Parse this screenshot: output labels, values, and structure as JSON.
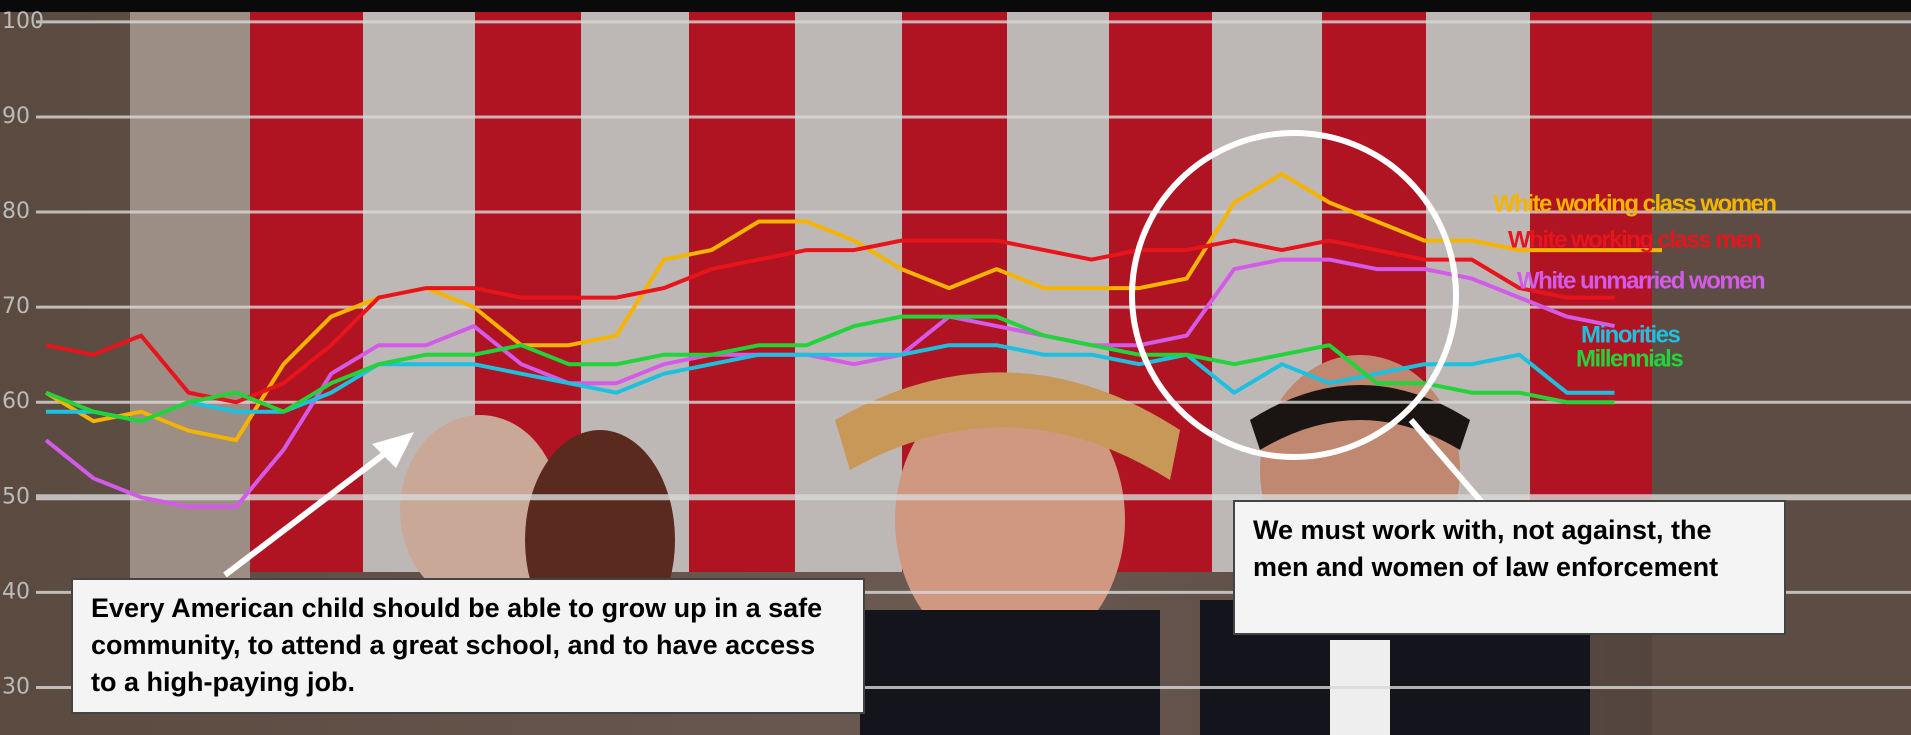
{
  "chart_data": {
    "type": "line",
    "ylim": [
      25,
      102.3
    ],
    "yticks": [
      30,
      40,
      50,
      60,
      70,
      80,
      90,
      100
    ],
    "grid": true,
    "series": [
      {
        "name": "White working class women",
        "color": "#f5b400",
        "values": [
          61,
          58,
          59,
          57,
          56,
          64,
          69,
          71,
          72,
          70,
          66,
          66,
          67,
          75,
          76,
          79,
          79,
          77,
          74,
          72,
          74,
          72,
          72,
          72,
          73,
          81,
          84,
          81,
          79,
          77,
          77,
          76,
          76,
          76,
          76
        ]
      },
      {
        "name": "White working class men",
        "color": "#e8141c",
        "values": [
          66,
          65,
          67,
          61,
          60,
          62,
          66,
          71,
          72,
          72,
          71,
          71,
          71,
          72,
          74,
          75,
          76,
          76,
          77,
          77,
          77,
          76,
          75,
          76,
          76,
          77,
          76,
          77,
          76,
          75,
          75,
          72,
          71,
          71,
          null
        ]
      },
      {
        "name": "White unmarried women",
        "color": "#d45ae8",
        "values": [
          56,
          52,
          50,
          49,
          49,
          55,
          63,
          66,
          66,
          68,
          64,
          62,
          62,
          64,
          65,
          65,
          65,
          64,
          65,
          69,
          68,
          67,
          66,
          66,
          67,
          74,
          75,
          75,
          74,
          74,
          73,
          71,
          69,
          68,
          null
        ]
      },
      {
        "name": "Minorities",
        "color": "#1ec0e0",
        "values": [
          59,
          59,
          58,
          60,
          59,
          59,
          61,
          64,
          64,
          64,
          63,
          62,
          61,
          63,
          64,
          65,
          65,
          65,
          65,
          66,
          66,
          65,
          65,
          64,
          65,
          61,
          64,
          62,
          63,
          64,
          64,
          65,
          61,
          61,
          null
        ]
      },
      {
        "name": "Millennials",
        "color": "#22d43a",
        "values": [
          61,
          59,
          58,
          60,
          61,
          59,
          62,
          64,
          65,
          65,
          66,
          64,
          64,
          65,
          65,
          66,
          66,
          68,
          69,
          69,
          69,
          67,
          66,
          65,
          65,
          64,
          65,
          66,
          62,
          62,
          61,
          61,
          60,
          60,
          null
        ]
      }
    ],
    "annotations": [
      "Every American child should be able to grow up in a safe community, to attend a great school, and to have access to a high-paying job.",
      "We must work with, not against, the men and women of law enforcement"
    ]
  }
}
